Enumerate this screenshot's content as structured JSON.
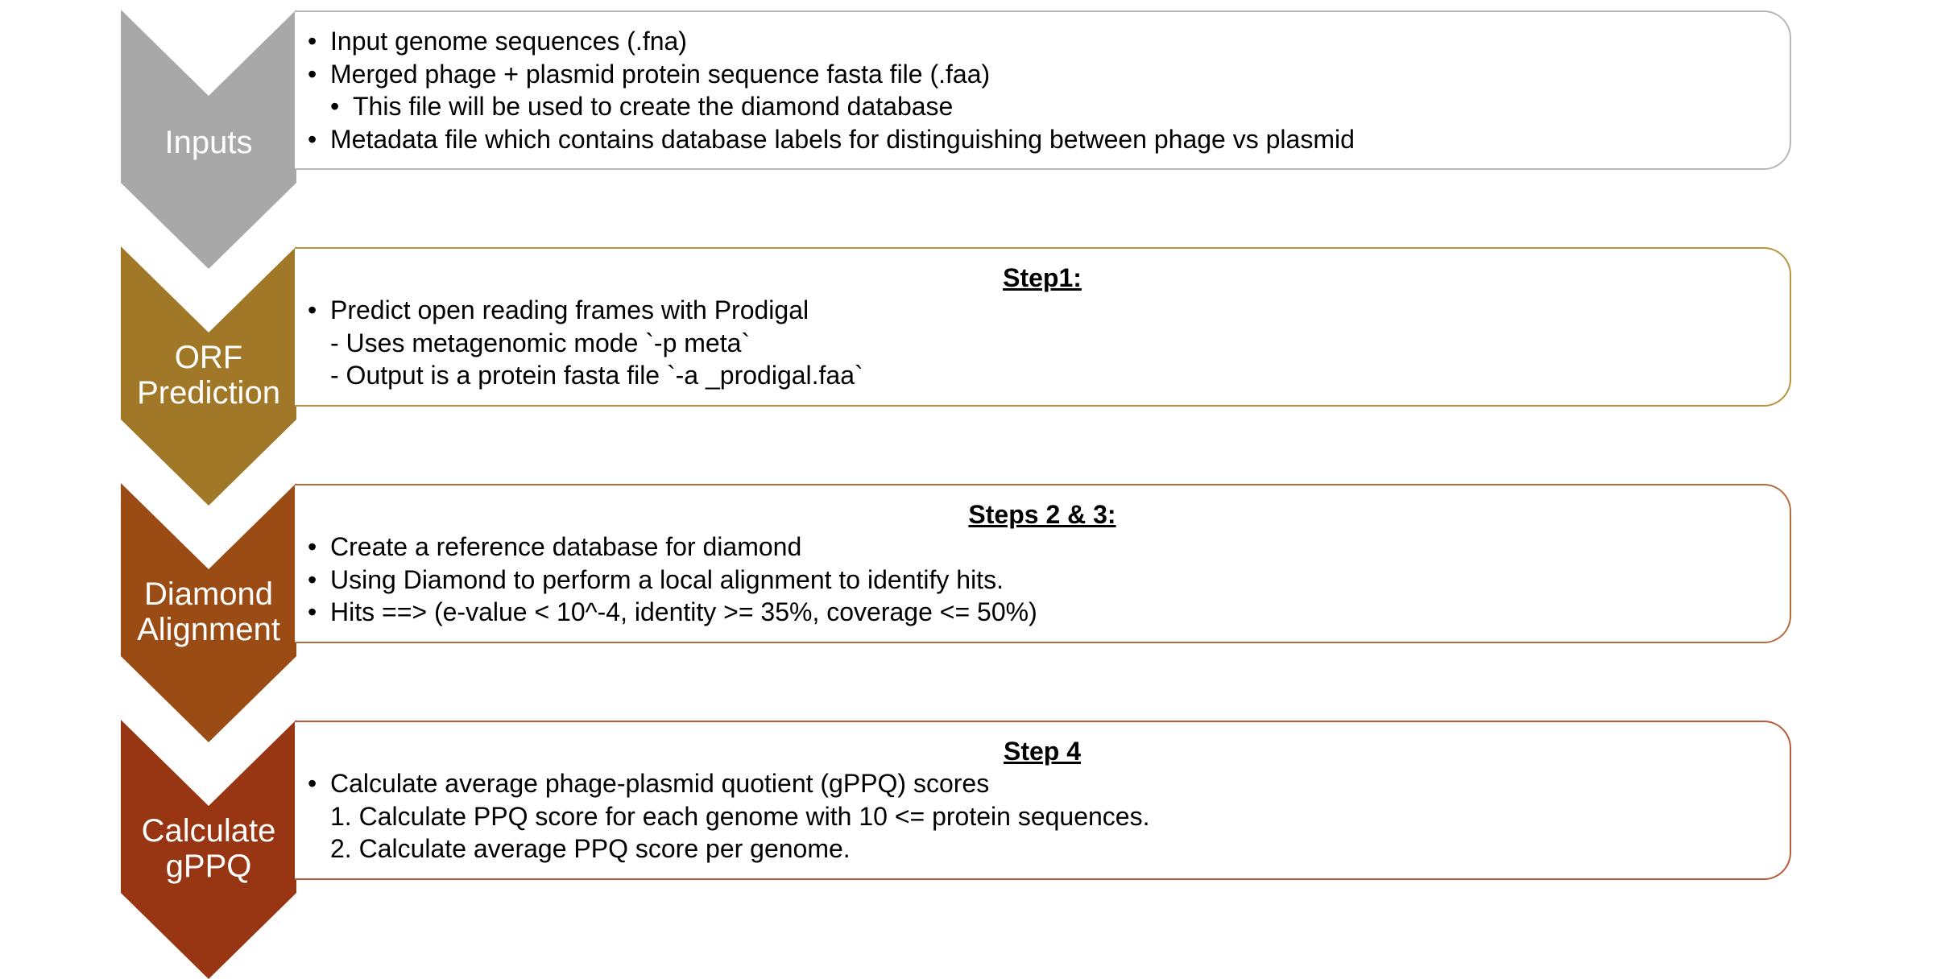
{
  "colors": {
    "inputs": "#a8a8a8",
    "orf": "#a07828",
    "diamond": "#9a4c14",
    "gppq": "#983512",
    "box_border_inputs": "#b8b8b8",
    "box_border_orf": "#b8943c",
    "box_border_diamond": "#b86a3a",
    "box_border_gppq": "#b85a3a"
  },
  "stages": [
    {
      "label_lines": [
        "Inputs"
      ],
      "heading": "",
      "lines": [
        {
          "bullet": "•",
          "text": "Input genome sequences (.fna)",
          "indent": 0
        },
        {
          "bullet": "•",
          "text": "Merged phage + plasmid protein sequence fasta file (.faa)",
          "indent": 0
        },
        {
          "bullet": "•",
          "text": "This file will be used to create the diamond database",
          "indent": 1
        },
        {
          "bullet": "•",
          "text": "Metadata file which contains database labels for distinguishing between phage vs plasmid",
          "indent": 0
        }
      ]
    },
    {
      "label_lines": [
        "ORF",
        "Prediction"
      ],
      "heading": "Step1:",
      "lines": [
        {
          "bullet": "•",
          "text": "Predict open reading frames with Prodigal",
          "indent": 0
        },
        {
          "bullet": "",
          "text": "- Uses metagenomic mode `-p meta`",
          "indent": 0
        },
        {
          "bullet": "",
          "text": "- Output is a protein fasta file `-a _prodigal.faa`",
          "indent": 0
        }
      ]
    },
    {
      "label_lines": [
        "Diamond",
        "Alignment"
      ],
      "heading": "Steps 2 & 3:",
      "lines": [
        {
          "bullet": "•",
          "text": "Create a reference database for diamond",
          "indent": 0
        },
        {
          "bullet": "•",
          "text": "Using Diamond to perform a local alignment to identify hits.",
          "indent": 0
        },
        {
          "bullet": "•",
          "text": "Hits ==> (e-value < 10^-4, identity >= 35%, coverage <= 50%)",
          "indent": 0
        }
      ]
    },
    {
      "label_lines": [
        "Calculate",
        "gPPQ"
      ],
      "heading": "Step 4",
      "lines": [
        {
          "bullet": "•",
          "text": "Calculate average phage-plasmid quotient (gPPQ) scores",
          "indent": 0
        },
        {
          "bullet": "",
          "text": "1. Calculate PPQ score for each genome with 10 <= protein sequences.",
          "indent": 0
        },
        {
          "bullet": "",
          "text": "2. Calculate average PPQ score per genome.",
          "indent": 0
        }
      ]
    }
  ]
}
